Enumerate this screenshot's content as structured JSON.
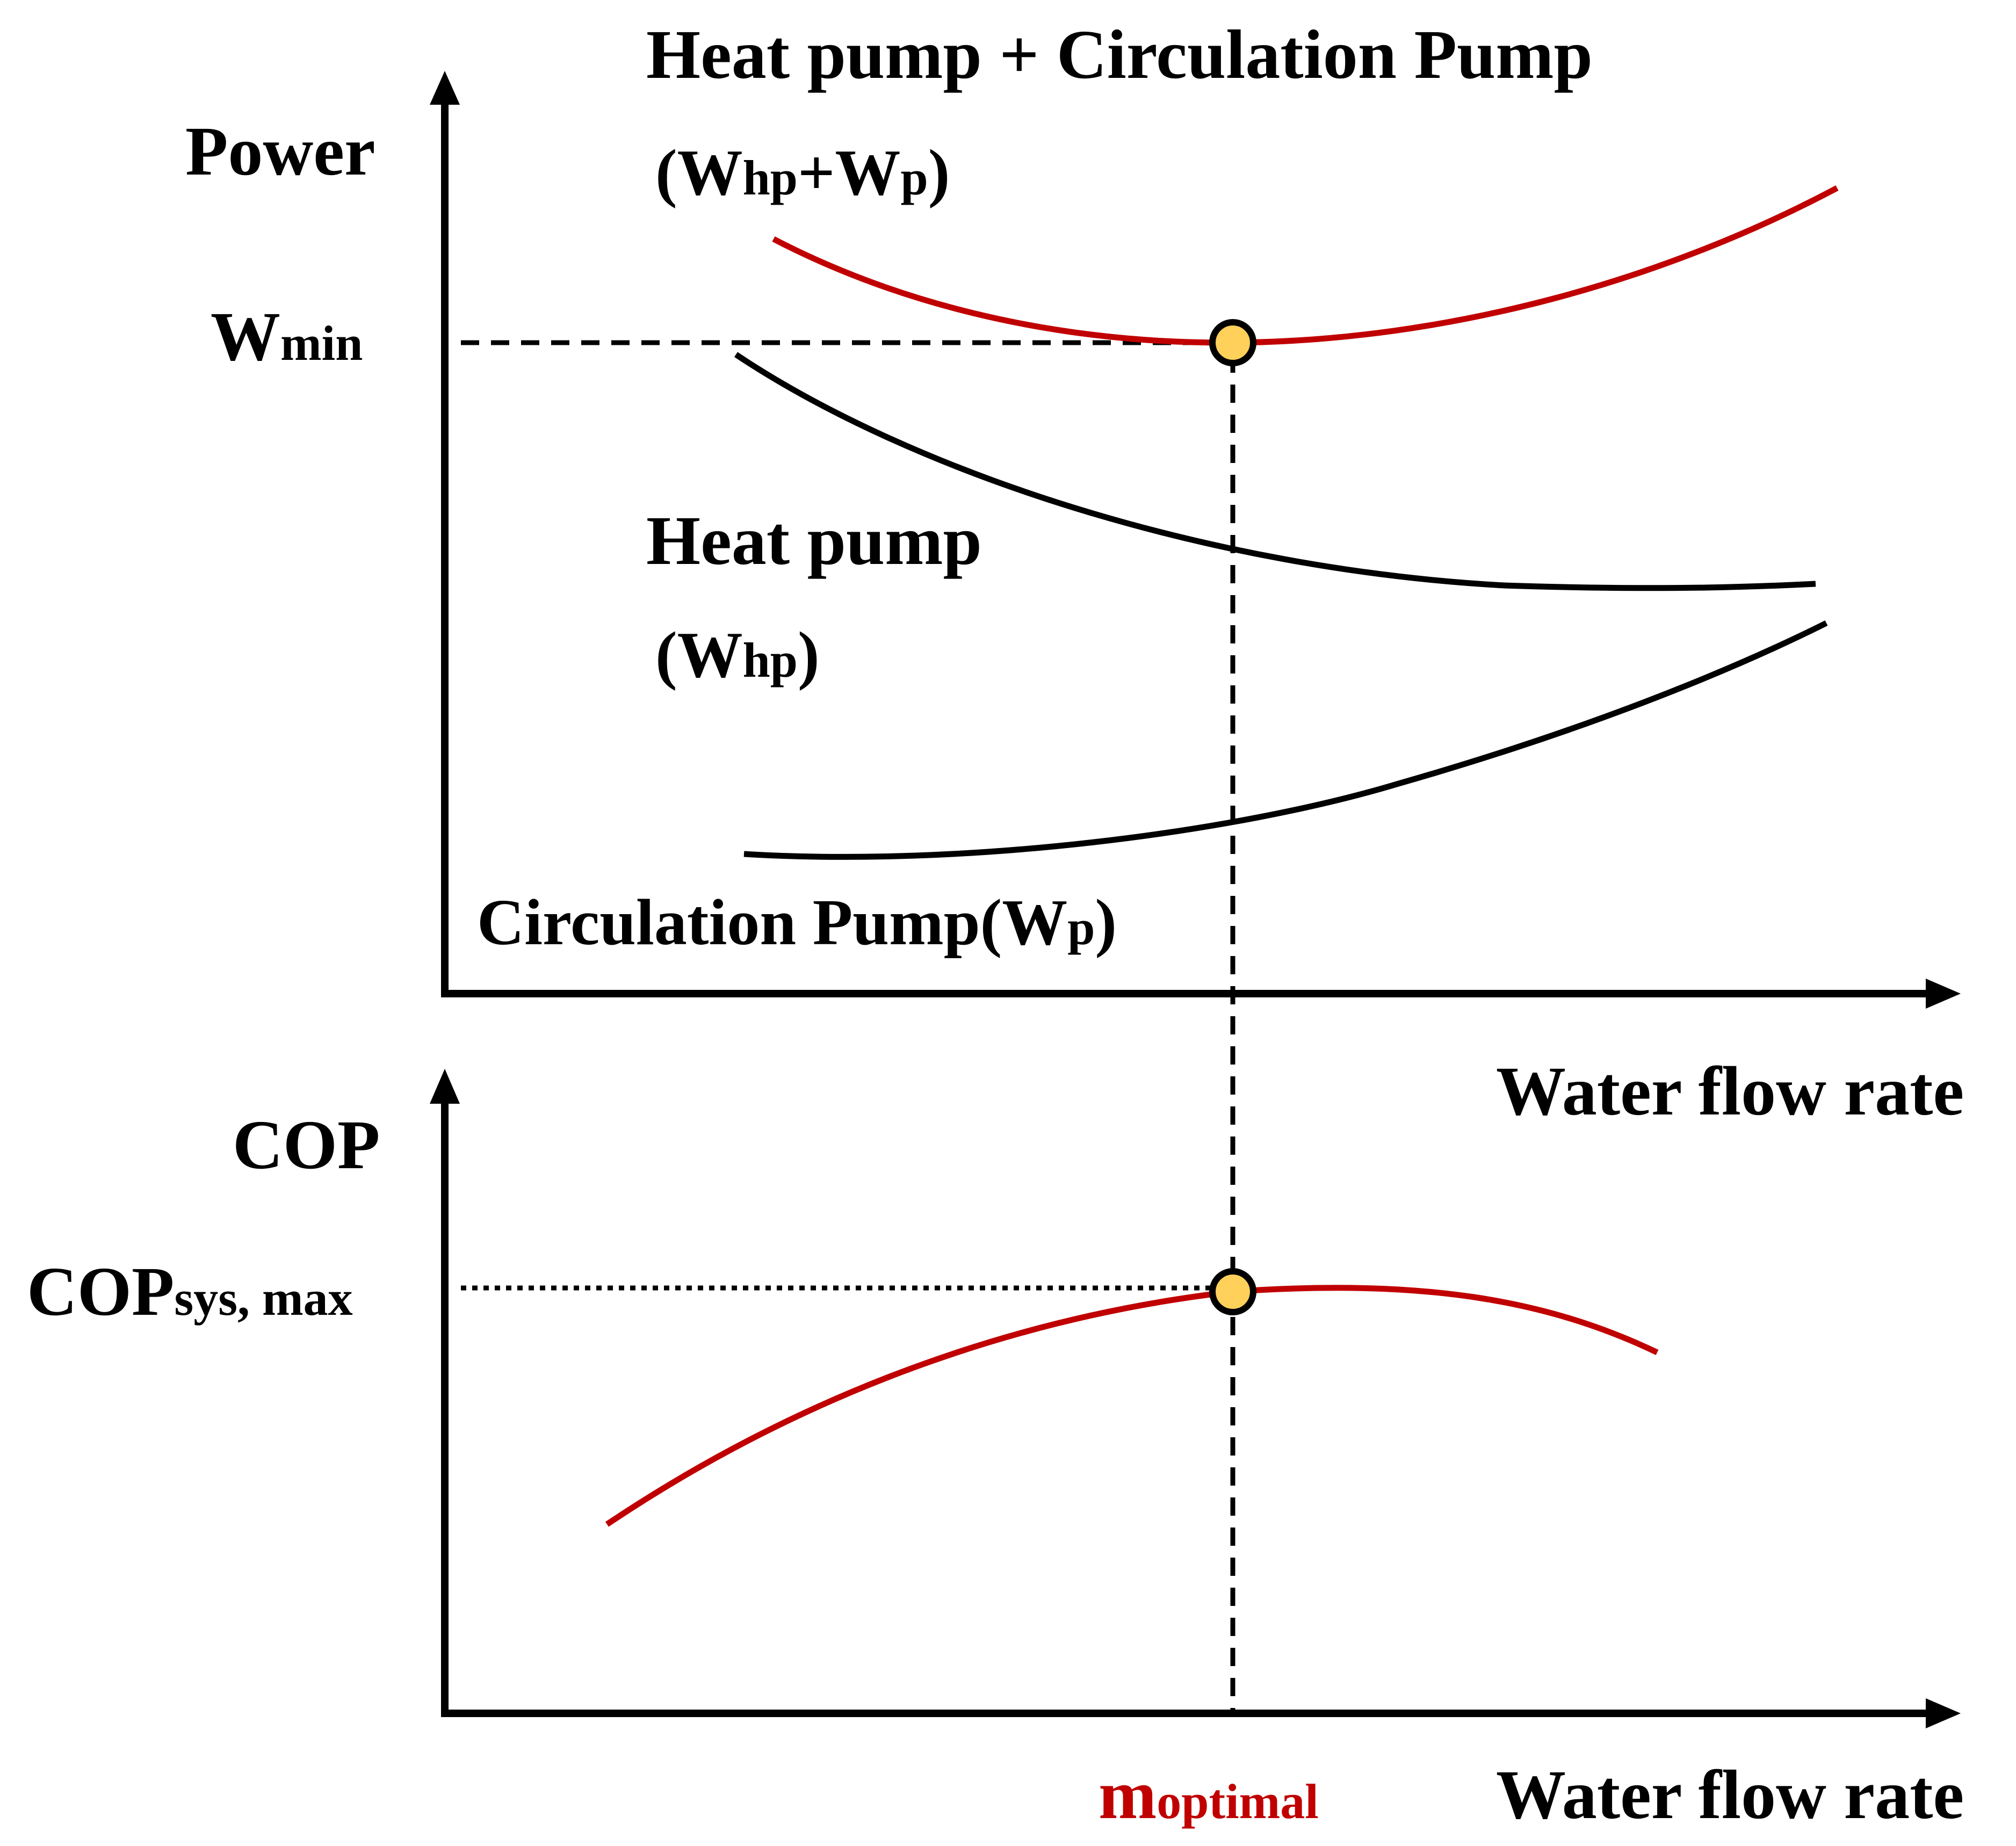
{
  "colors": {
    "axis": "#000000",
    "red_curve": "#c00000",
    "black_curve": "#000000",
    "marker_fill": "#ffd05a",
    "marker_stroke": "#000000",
    "optimal_label": "#c00000"
  },
  "top_chart": {
    "y_axis_label": "Power",
    "x_axis_label": "Water flow rate",
    "y_marker": {
      "main": "W",
      "sub": "min"
    },
    "combined": {
      "title": "Heat pump + Circulation Pump",
      "open": "(",
      "w1": "W",
      "sub1": "hp",
      "plus": "+",
      "w2": "W",
      "sub2": "p",
      "close": ")"
    },
    "heat_pump": {
      "title": "Heat pump",
      "open": "(",
      "w": "W",
      "sub": "hp",
      "close": ")"
    },
    "circulation_pump": {
      "title": "Circulation Pump(",
      "w": "W",
      "sub": "p",
      "close": ")"
    }
  },
  "bottom_chart": {
    "y_axis_label": "COP",
    "x_axis_label": "Water flow rate",
    "y_marker": {
      "main": "COP",
      "sub": "sys, max"
    },
    "x_marker": {
      "main": "m",
      "sub": "optimal"
    }
  }
}
